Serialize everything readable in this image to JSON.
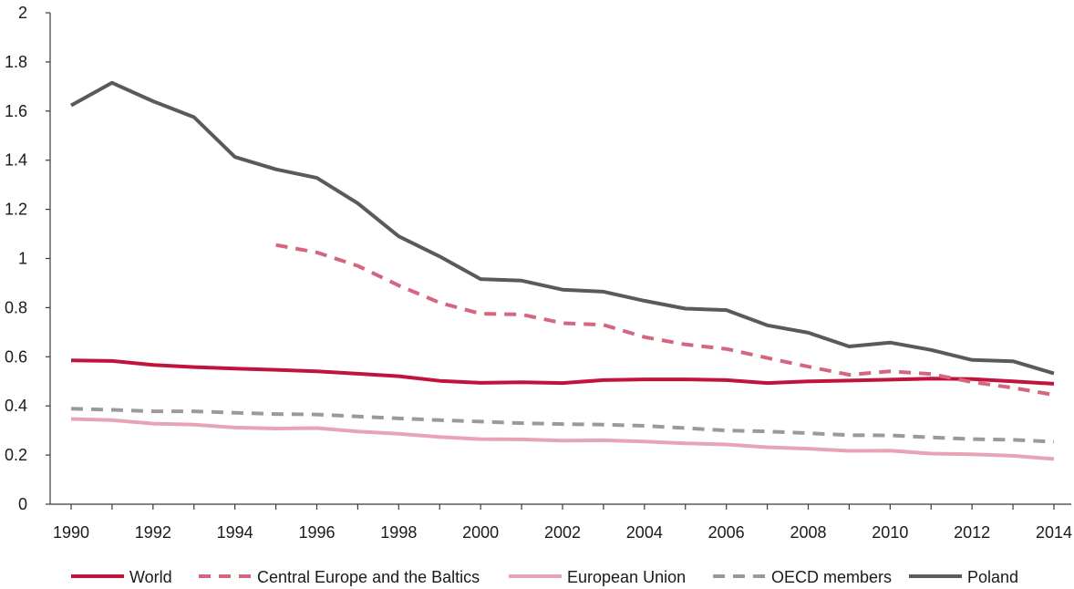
{
  "chart_data": {
    "type": "line",
    "title": "",
    "xlabel": "",
    "ylabel": "",
    "ylim": [
      0,
      2
    ],
    "yticks": [
      "0",
      "0.2",
      "0.4",
      "0.6",
      "0.8",
      "1",
      "1.2",
      "1.4",
      "1.6",
      "1.8",
      "2"
    ],
    "xticks": [
      "1990",
      "1992",
      "1994",
      "1996",
      "1998",
      "2000",
      "2002",
      "2004",
      "2006",
      "2008",
      "2010",
      "2012",
      "2014"
    ],
    "x": [
      1990,
      1991,
      1992,
      1993,
      1994,
      1995,
      1996,
      1997,
      1998,
      1999,
      2000,
      2001,
      2002,
      2003,
      2004,
      2005,
      2006,
      2007,
      2008,
      2009,
      2010,
      2011,
      2012,
      2013,
      2014
    ],
    "grid": false,
    "legend_position": "bottom",
    "series": [
      {
        "name": "World",
        "color": "#c0143c",
        "style": "solid",
        "values": [
          0.585,
          0.583,
          0.567,
          0.558,
          0.552,
          0.547,
          0.541,
          0.531,
          0.521,
          0.502,
          0.494,
          0.496,
          0.493,
          0.505,
          0.508,
          0.508,
          0.505,
          0.493,
          0.5,
          0.503,
          0.507,
          0.511,
          0.509,
          0.5,
          0.49
        ]
      },
      {
        "name": "Central Europe and the Baltics",
        "color": "#d4667f",
        "style": "dashed",
        "values": [
          null,
          null,
          null,
          null,
          null,
          1.055,
          1.025,
          0.97,
          0.89,
          0.82,
          0.775,
          0.772,
          0.737,
          0.73,
          0.68,
          0.65,
          0.632,
          0.595,
          0.56,
          0.527,
          0.541,
          0.53,
          0.497,
          0.474,
          0.445
        ]
      },
      {
        "name": "European Union",
        "color": "#e8a4b4",
        "style": "solid",
        "values": [
          0.347,
          0.342,
          0.328,
          0.324,
          0.312,
          0.308,
          0.31,
          0.296,
          0.287,
          0.274,
          0.265,
          0.264,
          0.259,
          0.26,
          0.255,
          0.248,
          0.243,
          0.232,
          0.226,
          0.217,
          0.218,
          0.206,
          0.203,
          0.197,
          0.184
        ]
      },
      {
        "name": "OECD members",
        "color": "#9a9a9a",
        "style": "dashed",
        "values": [
          0.389,
          0.384,
          0.378,
          0.378,
          0.372,
          0.367,
          0.365,
          0.357,
          0.349,
          0.342,
          0.336,
          0.33,
          0.326,
          0.324,
          0.319,
          0.31,
          0.3,
          0.296,
          0.289,
          0.281,
          0.28,
          0.272,
          0.265,
          0.262,
          0.254
        ]
      },
      {
        "name": "Poland",
        "color": "#5a5a5a",
        "style": "solid",
        "values": [
          1.623,
          1.715,
          1.64,
          1.575,
          1.413,
          1.363,
          1.328,
          1.225,
          1.09,
          1.008,
          0.916,
          0.91,
          0.873,
          0.865,
          0.828,
          0.796,
          0.79,
          0.728,
          0.698,
          0.642,
          0.658,
          0.628,
          0.587,
          0.582,
          0.532
        ]
      }
    ]
  }
}
